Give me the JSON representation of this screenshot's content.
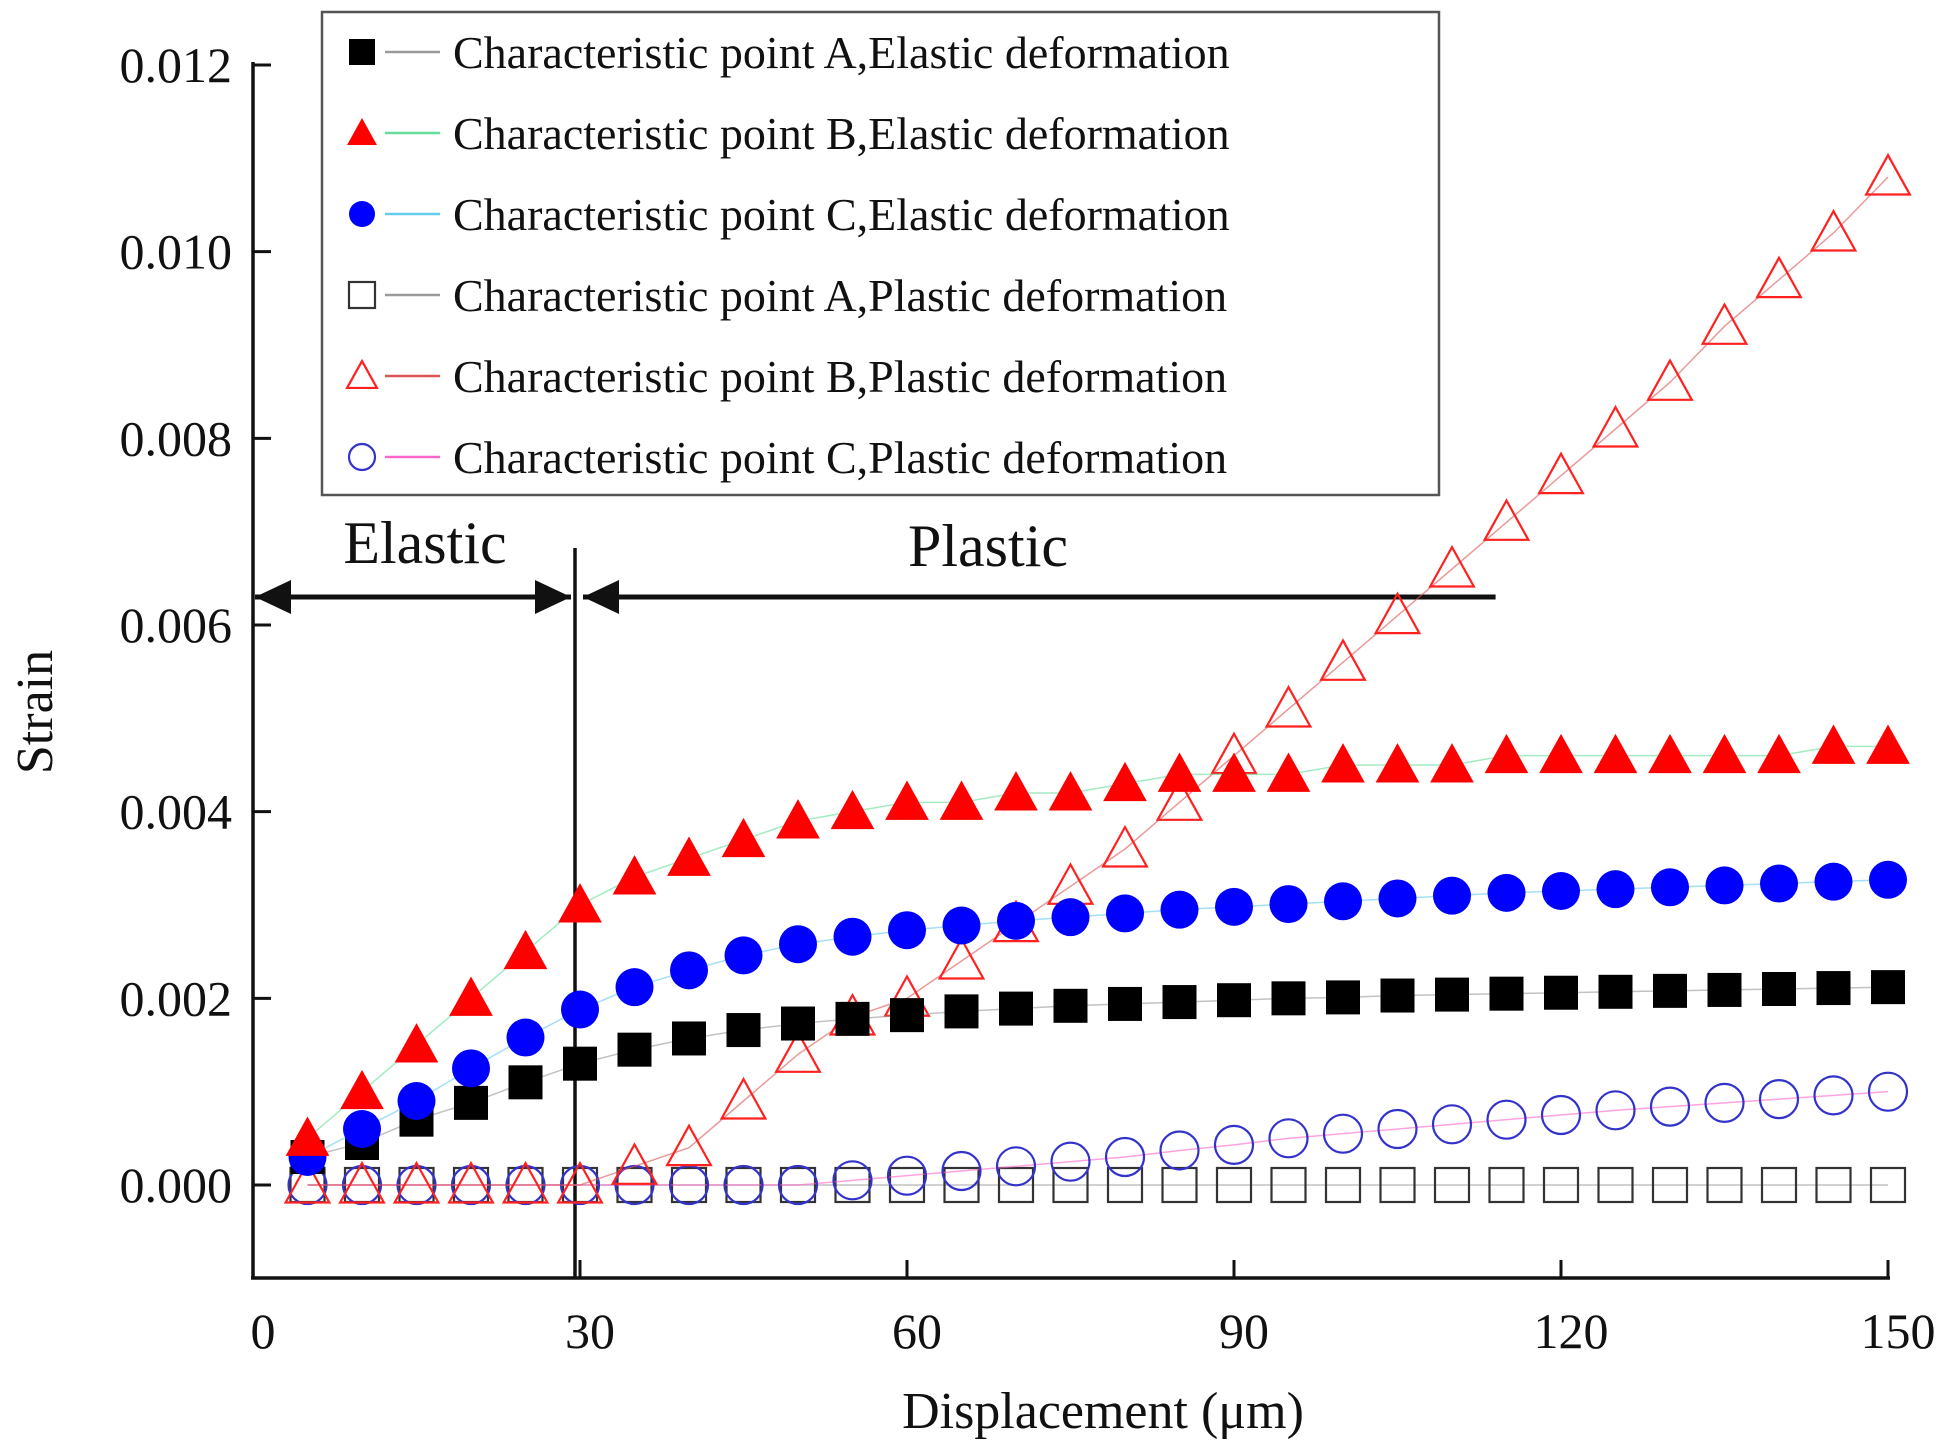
{
  "chart_data": {
    "type": "scatter",
    "title": "",
    "xlabel": "Displacement (μm)",
    "ylabel": "Strain",
    "xlim": [
      0,
      152
    ],
    "ylim": [
      -0.001,
      0.0125
    ],
    "xticks": [
      0,
      30,
      60,
      90,
      120,
      150
    ],
    "xtick_labels": [
      "0",
      "30",
      "60",
      "90",
      "120",
      "150"
    ],
    "yticks": [
      0.0,
      0.002,
      0.004,
      0.006,
      0.008,
      0.01,
      0.012
    ],
    "ytick_labels": [
      "0.000",
      "0.002",
      "0.004",
      "0.006",
      "0.008",
      "0.010",
      "0.012"
    ],
    "grid": false,
    "legend_position": "top",
    "x": [
      5,
      10,
      15,
      20,
      25,
      30,
      35,
      40,
      45,
      50,
      55,
      60,
      65,
      70,
      75,
      80,
      85,
      90,
      95,
      100,
      105,
      110,
      115,
      120,
      125,
      130,
      135,
      140,
      145,
      150
    ],
    "series": [
      {
        "name": "Characteristic point A,Elastic deformation",
        "marker": "square-filled",
        "color": "#000000",
        "line_color": "#9a9a9a",
        "values": [
          0.0003,
          0.00045,
          0.0007,
          0.00088,
          0.0011,
          0.0013,
          0.00145,
          0.00157,
          0.00166,
          0.00173,
          0.00178,
          0.00182,
          0.00186,
          0.00189,
          0.00192,
          0.00194,
          0.00196,
          0.00198,
          0.002,
          0.00201,
          0.00203,
          0.00204,
          0.00205,
          0.00206,
          0.00207,
          0.00208,
          0.00209,
          0.0021,
          0.00211,
          0.00212
        ]
      },
      {
        "name": "Characteristic point B,Elastic deformation",
        "marker": "triangle-filled",
        "color": "#ff0000",
        "line_color": "#66dd99",
        "values": [
          0.0005,
          0.001,
          0.0015,
          0.002,
          0.0025,
          0.003,
          0.0033,
          0.0035,
          0.0037,
          0.0039,
          0.004,
          0.0041,
          0.0041,
          0.0042,
          0.0042,
          0.0043,
          0.0044,
          0.0044,
          0.0044,
          0.0045,
          0.0045,
          0.0045,
          0.0046,
          0.0046,
          0.0046,
          0.0046,
          0.0046,
          0.0046,
          0.0047,
          0.0047
        ]
      },
      {
        "name": "Characteristic point C,Elastic deformation",
        "marker": "circle-filled",
        "color": "#0000ff",
        "line_color": "#66ccee",
        "values": [
          0.0003,
          0.0006,
          0.0009,
          0.00125,
          0.00158,
          0.00188,
          0.00212,
          0.0023,
          0.00246,
          0.00258,
          0.00266,
          0.00273,
          0.00278,
          0.00283,
          0.00287,
          0.00291,
          0.00295,
          0.00298,
          0.00301,
          0.00304,
          0.00307,
          0.0031,
          0.00313,
          0.00315,
          0.00317,
          0.00319,
          0.00321,
          0.00323,
          0.00325,
          0.00327
        ]
      },
      {
        "name": "Characteristic point A,Plastic deformation",
        "marker": "square-open",
        "color": "#333333",
        "line_color": "#9a9a9a",
        "values": [
          0,
          0,
          0,
          0,
          0,
          0,
          0,
          0,
          0,
          0,
          0,
          0,
          0,
          0,
          0,
          0,
          0,
          0,
          0,
          0,
          0,
          0,
          0,
          0,
          0,
          0,
          0,
          0,
          0,
          0
        ]
      },
      {
        "name": "Characteristic point B,Plastic deformation",
        "marker": "triangle-open",
        "color": "#ff2020",
        "line_color": "#dd5555",
        "values": [
          0,
          0,
          0,
          0,
          0,
          0,
          0.0002,
          0.0004,
          0.0009,
          0.0014,
          0.0018,
          0.002,
          0.0024,
          0.0028,
          0.0032,
          0.0036,
          0.0041,
          0.0046,
          0.0051,
          0.0056,
          0.0061,
          0.0066,
          0.0071,
          0.0076,
          0.0081,
          0.0086,
          0.0092,
          0.0097,
          0.0102,
          0.0108
        ]
      },
      {
        "name": "Characteristic point C,Plastic deformation",
        "marker": "circle-open",
        "color": "#3333cc",
        "line_color": "#ff66cc",
        "values": [
          0,
          0,
          0,
          0,
          0,
          0,
          0,
          0,
          0,
          0,
          5e-05,
          0.0001,
          0.00015,
          0.0002,
          0.00025,
          0.0003,
          0.00037,
          0.00043,
          0.0005,
          0.00055,
          0.0006,
          0.00065,
          0.0007,
          0.00075,
          0.0008,
          0.00084,
          0.00088,
          0.00092,
          0.00096,
          0.001
        ]
      }
    ],
    "annotations": {
      "elastic_label": "Elastic",
      "plastic_label": "Plastic",
      "boundary_x": 30,
      "arrow_y": 0.0063,
      "elastic_arrow_range": [
        0,
        29
      ],
      "plastic_arrow_range": [
        30,
        114
      ]
    }
  }
}
